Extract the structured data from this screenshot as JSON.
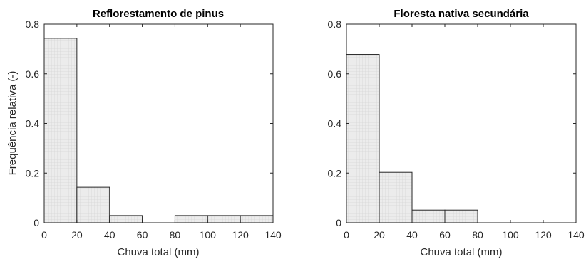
{
  "chart_data": [
    {
      "type": "bar",
      "title": "Reflorestamento de pinus",
      "xlabel": "Chuva total (mm)",
      "ylabel": "Frequência relativa (-)",
      "bin_edges": [
        0,
        20,
        40,
        60,
        80,
        100,
        120,
        140
      ],
      "values": [
        0.743,
        0.143,
        0.029,
        0.0,
        0.029,
        0.029,
        0.029
      ],
      "xlim": [
        0,
        140
      ],
      "ylim": [
        0,
        0.8
      ],
      "xticks": [
        "0",
        "20",
        "40",
        "60",
        "80",
        "100",
        "120",
        "140"
      ],
      "yticks": [
        "0",
        "0.2",
        "0.4",
        "0.6",
        "0.8"
      ],
      "bar_color": "#e8e8e8",
      "edge_color": "#262626",
      "grid": false
    },
    {
      "type": "bar",
      "title": "Floresta nativa secundária",
      "xlabel": "Chuva total (mm)",
      "ylabel": "",
      "bin_edges": [
        0,
        20,
        40,
        60,
        80,
        100,
        120,
        140
      ],
      "values": [
        0.678,
        0.203,
        0.051,
        0.051,
        0.0,
        0.0,
        0.0
      ],
      "xlim": [
        0,
        140
      ],
      "ylim": [
        0,
        0.8
      ],
      "xticks": [
        "0",
        "20",
        "40",
        "60",
        "80",
        "100",
        "120",
        "140"
      ],
      "yticks": [
        "0",
        "0.2",
        "0.4",
        "0.6",
        "0.8"
      ],
      "bar_color": "#e8e8e8",
      "edge_color": "#262626",
      "grid": false
    }
  ]
}
